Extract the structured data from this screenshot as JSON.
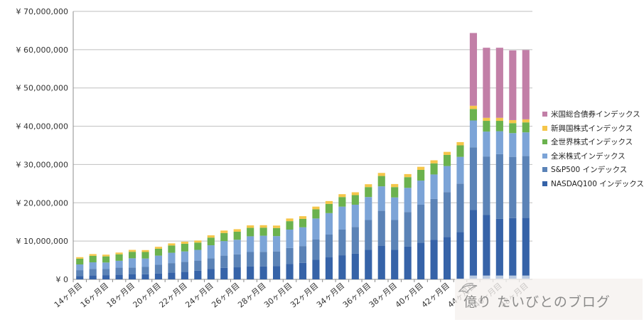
{
  "chart_data": {
    "type": "bar",
    "stacked": true,
    "ylim": [
      0,
      70000000
    ],
    "yticks": [
      {
        "value": 0,
        "label": "¥ 0"
      },
      {
        "value": 10000000,
        "label": "¥ 10,000,000"
      },
      {
        "value": 20000000,
        "label": "¥ 20,000,000"
      },
      {
        "value": 30000000,
        "label": "¥ 30,000,000"
      },
      {
        "value": 40000000,
        "label": "¥ 40,000,000"
      },
      {
        "value": 50000000,
        "label": "¥ 50,000,000"
      },
      {
        "value": 60000000,
        "label": "¥ 60,000,000"
      },
      {
        "value": 70000000,
        "label": "¥ 70,000,000"
      }
    ],
    "grid": true,
    "legend_position": "right",
    "categories": [
      "14ヶ月目",
      "15ヶ月目",
      "16ヶ月目",
      "17ヶ月目",
      "18ヶ月目",
      "19ヶ月目",
      "20ヶ月目",
      "21ヶ月目",
      "22ヶ月目",
      "23ヶ月目",
      "24ヶ月目",
      "25ヶ月目",
      "26ヶ月目",
      "27ヶ月目",
      "28ヶ月目",
      "29ヶ月目",
      "30ヶ月目",
      "31ヶ月目",
      "32ヶ月目",
      "33ヶ月目",
      "34ヶ月目",
      "35ヶ月目",
      "36ヶ月目",
      "37ヶ月目",
      "38ヶ月目",
      "39ヶ月目",
      "40ヶ月目",
      "41ヶ月目",
      "42ヶ月目",
      "43ヶ月目",
      "44ヶ月目",
      "45ヶ月目",
      "46ヶ月目",
      "47ヶ月目",
      "48ヶ月目"
    ],
    "x_tick_labels": [
      "14ヶ月目",
      "16ヶ月目",
      "18ヶ月目",
      "20ヶ月目",
      "22ヶ月目",
      "24ヶ月目",
      "26ヶ月目",
      "28ヶ月目",
      "30ヶ月目",
      "32ヶ月目",
      "34ヶ月目",
      "36ヶ月目",
      "38ヶ月目",
      "40ヶ月目",
      "42ヶ月目",
      "44ヶ月目",
      "46ヶ月目",
      "48ヶ月目"
    ],
    "series": [
      {
        "name": "NASDAQ100 インデックス",
        "color": "#3663a8",
        "values": [
          900000,
          1050000,
          1100000,
          1250000,
          1300000,
          1350000,
          1500000,
          1750000,
          2000000,
          2250000,
          2700000,
          3000000,
          3150000,
          3350000,
          3400000,
          3500000,
          4000000,
          4300000,
          5100000,
          5750000,
          6300000,
          6700000,
          7700000,
          8800000,
          7700000,
          8600000,
          9600000,
          10300000,
          11100000,
          12400000,
          18100000,
          16800000,
          15800000,
          16000000,
          16100000
        ]
      },
      {
        "name": "S&P500 インデックス",
        "color": "#5b83b7",
        "values": [
          1500000,
          1700000,
          1600000,
          1800000,
          1800000,
          1900000,
          2300000,
          2500000,
          2600000,
          2650000,
          2800000,
          3200000,
          3400000,
          3800000,
          3800000,
          3800000,
          4200000,
          4400000,
          5300000,
          5950000,
          6700000,
          7000000,
          7800000,
          9100000,
          7800000,
          9000000,
          9900000,
          10700000,
          11700000,
          12600000,
          16400000,
          15300000,
          16900000,
          16000000,
          16100000
        ]
      },
      {
        "name": "全米株式インデックス",
        "color": "#7ca4d7",
        "values": [
          1500000,
          1700000,
          1700000,
          1800000,
          2400000,
          2200000,
          2400000,
          2700000,
          2700000,
          2800000,
          3400000,
          3800000,
          3800000,
          4100000,
          4200000,
          4000000,
          4800000,
          4900000,
          5500000,
          5600000,
          6000000,
          5800000,
          6000000,
          6400000,
          5900000,
          6300000,
          6300000,
          6400000,
          6800000,
          7000000,
          7000000,
          6500000,
          6000000,
          6200000,
          6200000
        ]
      },
      {
        "name": "全世界株式インデックス",
        "color": "#6bb24e",
        "values": [
          1500000,
          1700000,
          1600000,
          1700000,
          1700000,
          1700000,
          1800000,
          1900000,
          2000000,
          1900000,
          2000000,
          2100000,
          2100000,
          2200000,
          2100000,
          2100000,
          2200000,
          2200000,
          2400000,
          2400000,
          2500000,
          2500000,
          2600000,
          2700000,
          2700000,
          2800000,
          2800000,
          2900000,
          2900000,
          3000000,
          3000000,
          2800000,
          2700000,
          2600000,
          2600000
        ]
      },
      {
        "name": "新興国株式インデックス",
        "color": "#f5c64a",
        "values": [
          400000,
          450000,
          450000,
          450000,
          500000,
          500000,
          500000,
          550000,
          550000,
          550000,
          600000,
          650000,
          650000,
          650000,
          650000,
          650000,
          700000,
          700000,
          700000,
          750000,
          750000,
          750000,
          750000,
          800000,
          800000,
          800000,
          800000,
          800000,
          800000,
          850000,
          850000,
          800000,
          800000,
          800000,
          800000
        ]
      },
      {
        "name": "米国総合債券インデックス",
        "color": "#c27fa7",
        "values": [
          0,
          0,
          0,
          0,
          0,
          0,
          0,
          0,
          0,
          0,
          0,
          0,
          0,
          0,
          0,
          0,
          0,
          0,
          0,
          0,
          0,
          0,
          0,
          0,
          0,
          0,
          0,
          0,
          0,
          0,
          19000000,
          18300000,
          18300000,
          18200000,
          18100000
        ]
      }
    ],
    "bonus_series_note_removed": true,
    "light_base_values": [
      0,
      0,
      0,
      0,
      0,
      0,
      0,
      0,
      0,
      0,
      0,
      0,
      0,
      0,
      0,
      0,
      0,
      0,
      0,
      0,
      0,
      0,
      0,
      0,
      0,
      0,
      0,
      0,
      0,
      0,
      1000000,
      1000000,
      1000000,
      1000000,
      1000000
    ],
    "light_base_color": "#b9c9e0"
  },
  "legend_order": [
    5,
    4,
    3,
    2,
    1,
    0
  ],
  "watermark": {
    "text": "億り たいびとのブログ"
  },
  "colors": {
    "grid": "#bfbfbf",
    "axis": "#8c8c8c",
    "background": "#ffffff"
  }
}
